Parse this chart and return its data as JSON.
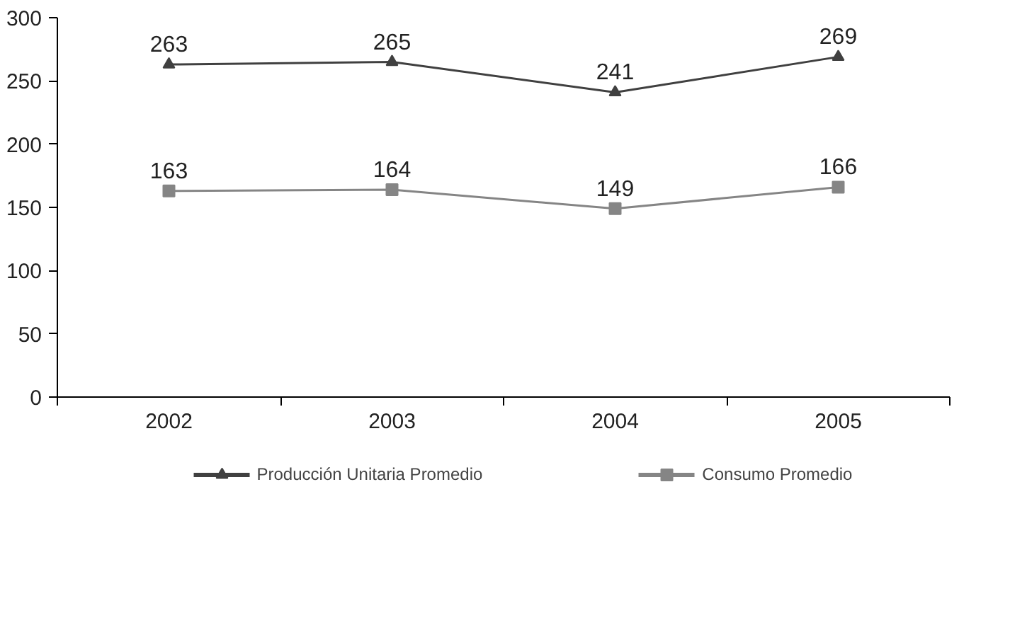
{
  "chart_data": {
    "type": "line",
    "categories": [
      "2002",
      "2003",
      "2004",
      "2005"
    ],
    "series": [
      {
        "name": "Producción Unitaria Promedio",
        "color": "#404040",
        "marker": "triangle",
        "values": [
          263,
          265,
          241,
          269
        ]
      },
      {
        "name": "Consumo Promedio",
        "color": "#858585",
        "marker": "square",
        "values": [
          163,
          164,
          149,
          166
        ]
      }
    ],
    "ylim": [
      0,
      300
    ],
    "yticks": [
      0,
      50,
      100,
      150,
      200,
      250,
      300
    ],
    "grid": false,
    "legend": "bottom",
    "data_labels": true,
    "line_style": "solid"
  }
}
